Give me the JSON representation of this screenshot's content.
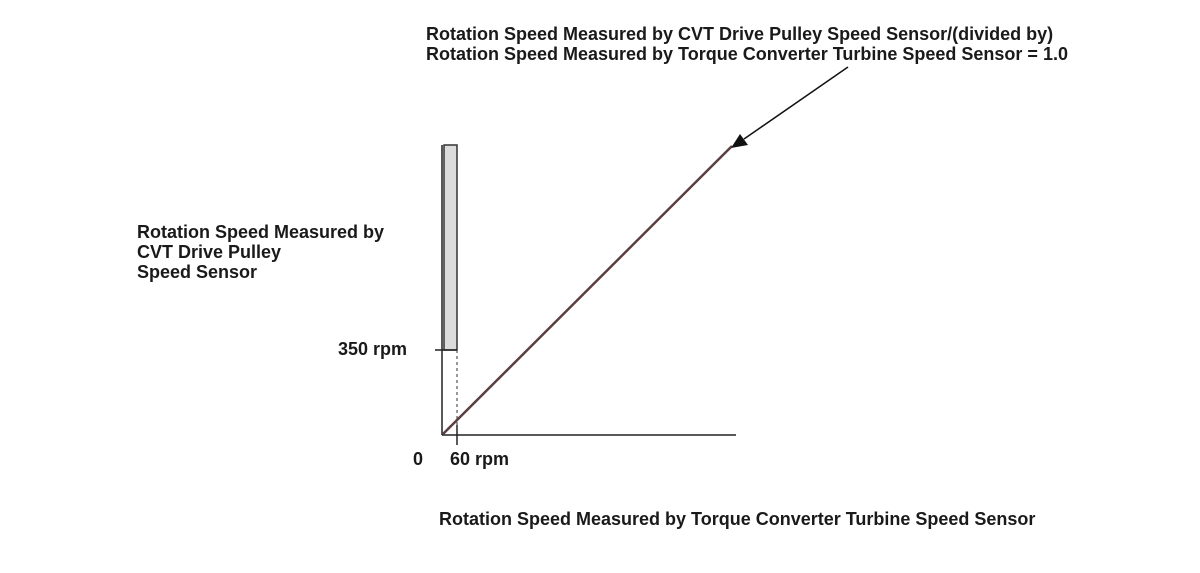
{
  "title": {
    "line1": "Rotation Speed Measured by CVT Drive Pulley Speed Sensor/(divided by)",
    "line2": "Rotation Speed Measured by Torque Converter Turbine Speed Sensor = 1.0"
  },
  "y_axis_label": {
    "line1": "Rotation Speed Measured by",
    "line2": "CVT Drive Pulley",
    "line3": "Speed Sensor"
  },
  "x_axis_label": "Rotation Speed Measured by Torque Converter Turbine Speed Sensor",
  "ticks": {
    "origin": "0",
    "x_threshold": "60 rpm",
    "y_threshold": "350 rpm"
  },
  "colors": {
    "ink": "#1a1a1a",
    "ratio_line": "#5a3f3f",
    "band_fill": "#dcdcdc"
  }
}
